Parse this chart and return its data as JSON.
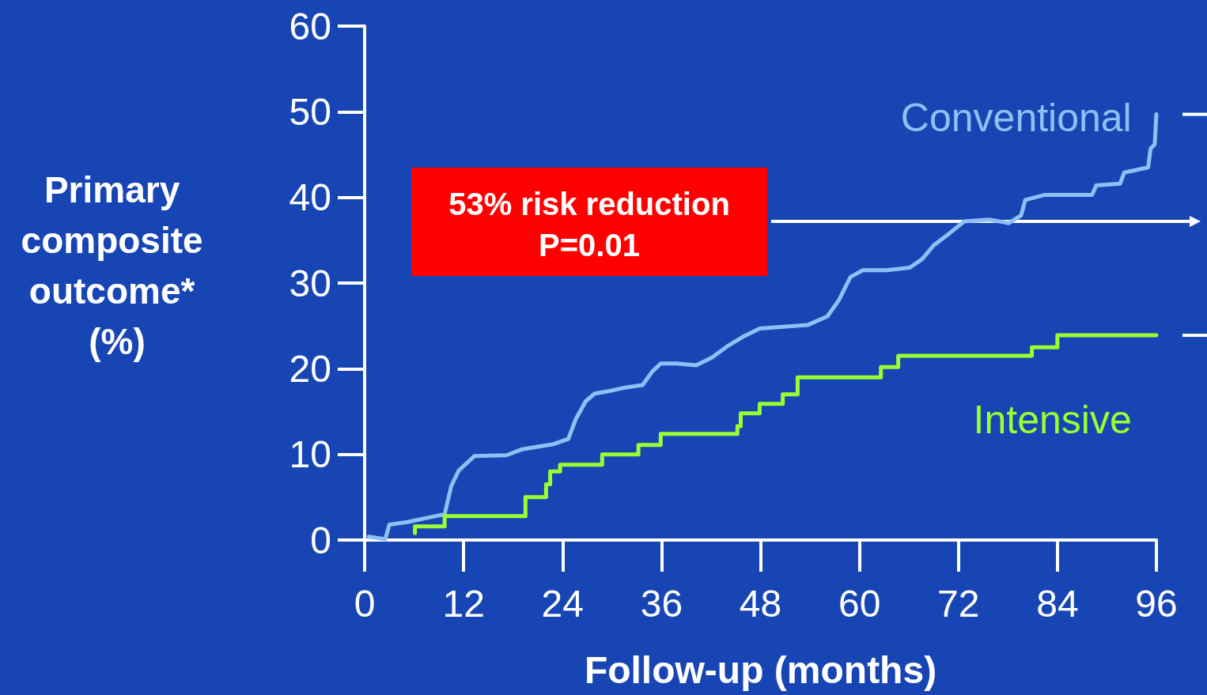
{
  "chart_data": {
    "type": "line",
    "xlabel": "Follow-up (months)",
    "ylabel": "Primary composite outcome* (%)",
    "xlim": [
      0,
      96
    ],
    "xticks": [
      0,
      12,
      24,
      36,
      48,
      60,
      72,
      84,
      96
    ],
    "ylim": [
      0,
      60
    ],
    "yticks": [
      0,
      10,
      20,
      30,
      40,
      50,
      60
    ],
    "grid": false,
    "legend": false,
    "marker": "none",
    "line_style": "solid",
    "annotations": [
      "53% risk reduction",
      "P=0.01"
    ],
    "ref_lines": [
      {
        "axis": "y",
        "value": 37.2,
        "color": "#ffffff"
      }
    ],
    "series": [
      {
        "name": "Conventional",
        "color": "#8ec0f5",
        "x": [
          0.5,
          2.5,
          3.0,
          5.2,
          7.6,
          9.7,
          10.5,
          11.4,
          13.3,
          17.2,
          19.1,
          22.9,
          24.7,
          25.6,
          26.8,
          27.9,
          29.7,
          31.6,
          33.7,
          34.9,
          35.9,
          37.8,
          40.2,
          42.1,
          44.1,
          46.0,
          47.9,
          50.8,
          53.7,
          56.1,
          57.5,
          58.9,
          60.4,
          63.3,
          66.1,
          67.6,
          69.0,
          70.9,
          72.7,
          75.7,
          78.1,
          79.6,
          80.1,
          82.5,
          88.2,
          88.7,
          91.6,
          92.1,
          95.0,
          95.3,
          95.8,
          96.0
        ],
        "values": [
          0.4,
          0.1,
          1.8,
          2.1,
          2.6,
          3.0,
          6.3,
          8.1,
          9.8,
          9.9,
          10.6,
          11.2,
          11.8,
          14.1,
          16.2,
          17.1,
          17.4,
          17.8,
          18.1,
          19.7,
          20.6,
          20.6,
          20.4,
          21.3,
          22.7,
          23.8,
          24.7,
          24.9,
          25.1,
          26.1,
          28.0,
          30.7,
          31.5,
          31.5,
          31.8,
          32.8,
          34.4,
          35.8,
          37.2,
          37.4,
          37.0,
          37.9,
          39.7,
          40.3,
          40.3,
          41.4,
          41.6,
          42.9,
          43.5,
          45.7,
          46.2,
          49.7
        ]
      },
      {
        "name": "Intensive",
        "color": "#99ff33",
        "type": "step",
        "x": [
          6.1,
          6.1,
          9.7,
          19.5,
          22.0,
          22.5,
          23.7,
          28.8,
          33.2,
          35.9,
          45.2,
          45.6,
          47.9,
          50.7,
          52.5,
          62.6,
          64.7,
          80.9,
          84.0,
          96.0
        ],
        "values": [
          0.8,
          1.6,
          2.8,
          5.0,
          6.5,
          8.0,
          8.8,
          10.0,
          11.1,
          12.4,
          13.3,
          14.8,
          15.9,
          17.0,
          19.0,
          20.2,
          21.5,
          22.5,
          23.9,
          23.9
        ]
      }
    ]
  }
}
